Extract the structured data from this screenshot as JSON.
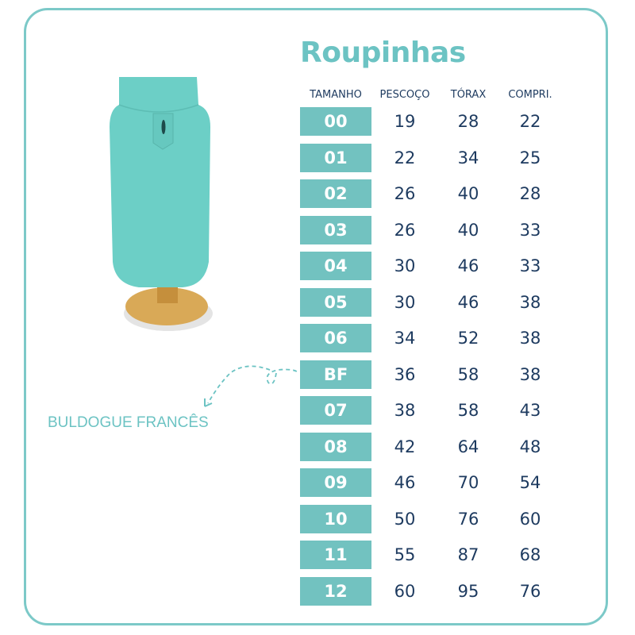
{
  "title": "Roupinhas",
  "headers": [
    "TAMANHO",
    "PESCOÇO",
    "TÓRAX",
    "COMPRI."
  ],
  "rows": [
    [
      "00",
      "19",
      "28",
      "22"
    ],
    [
      "01",
      "22",
      "34",
      "25"
    ],
    [
      "02",
      "26",
      "40",
      "28"
    ],
    [
      "03",
      "26",
      "40",
      "33"
    ],
    [
      "04",
      "30",
      "46",
      "33"
    ],
    [
      "05",
      "30",
      "46",
      "38"
    ],
    [
      "06",
      "34",
      "52",
      "38"
    ],
    [
      "BF",
      "36",
      "58",
      "38"
    ],
    [
      "07",
      "38",
      "58",
      "43"
    ],
    [
      "08",
      "42",
      "64",
      "48"
    ],
    [
      "09",
      "46",
      "70",
      "54"
    ],
    [
      "10",
      "50",
      "76",
      "60"
    ],
    [
      "11",
      "55",
      "87",
      "68"
    ],
    [
      "12",
      "60",
      "95",
      "76"
    ]
  ],
  "annotation": "BULDOGUE FRANCÊS",
  "colors": {
    "accent": "#72c2c0",
    "text": "#1d3a5f",
    "sweater": "#6ccfc6",
    "stand": "#d9a957"
  }
}
